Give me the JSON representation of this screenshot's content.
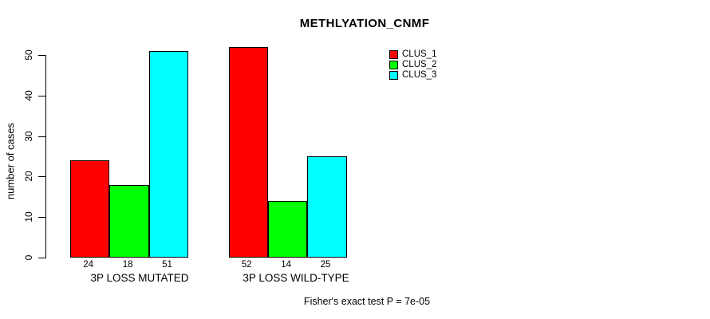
{
  "chart_data": {
    "type": "bar",
    "title": "METHLYATION_CNMF",
    "ylabel": "number of cases",
    "xlabel": "",
    "footer": "Fisher's exact test P = 7e-05",
    "categories": [
      "3P LOSS MUTATED",
      "3P LOSS WILD-TYPE"
    ],
    "series": [
      {
        "name": "CLUS_1",
        "color": "#FF0000",
        "values": [
          24,
          52
        ]
      },
      {
        "name": "CLUS_2",
        "color": "#00FF00",
        "values": [
          18,
          14
        ]
      },
      {
        "name": "CLUS_3",
        "color": "#00FFFF",
        "values": [
          51,
          25
        ]
      }
    ],
    "yticks": [
      0,
      10,
      20,
      30,
      40,
      50
    ],
    "ylim": [
      0,
      52
    ],
    "grid": false,
    "legend_position": "top-right",
    "bar_border_color": "#000000",
    "axis_color": "#000000",
    "background_color": "#FFFFFF"
  }
}
